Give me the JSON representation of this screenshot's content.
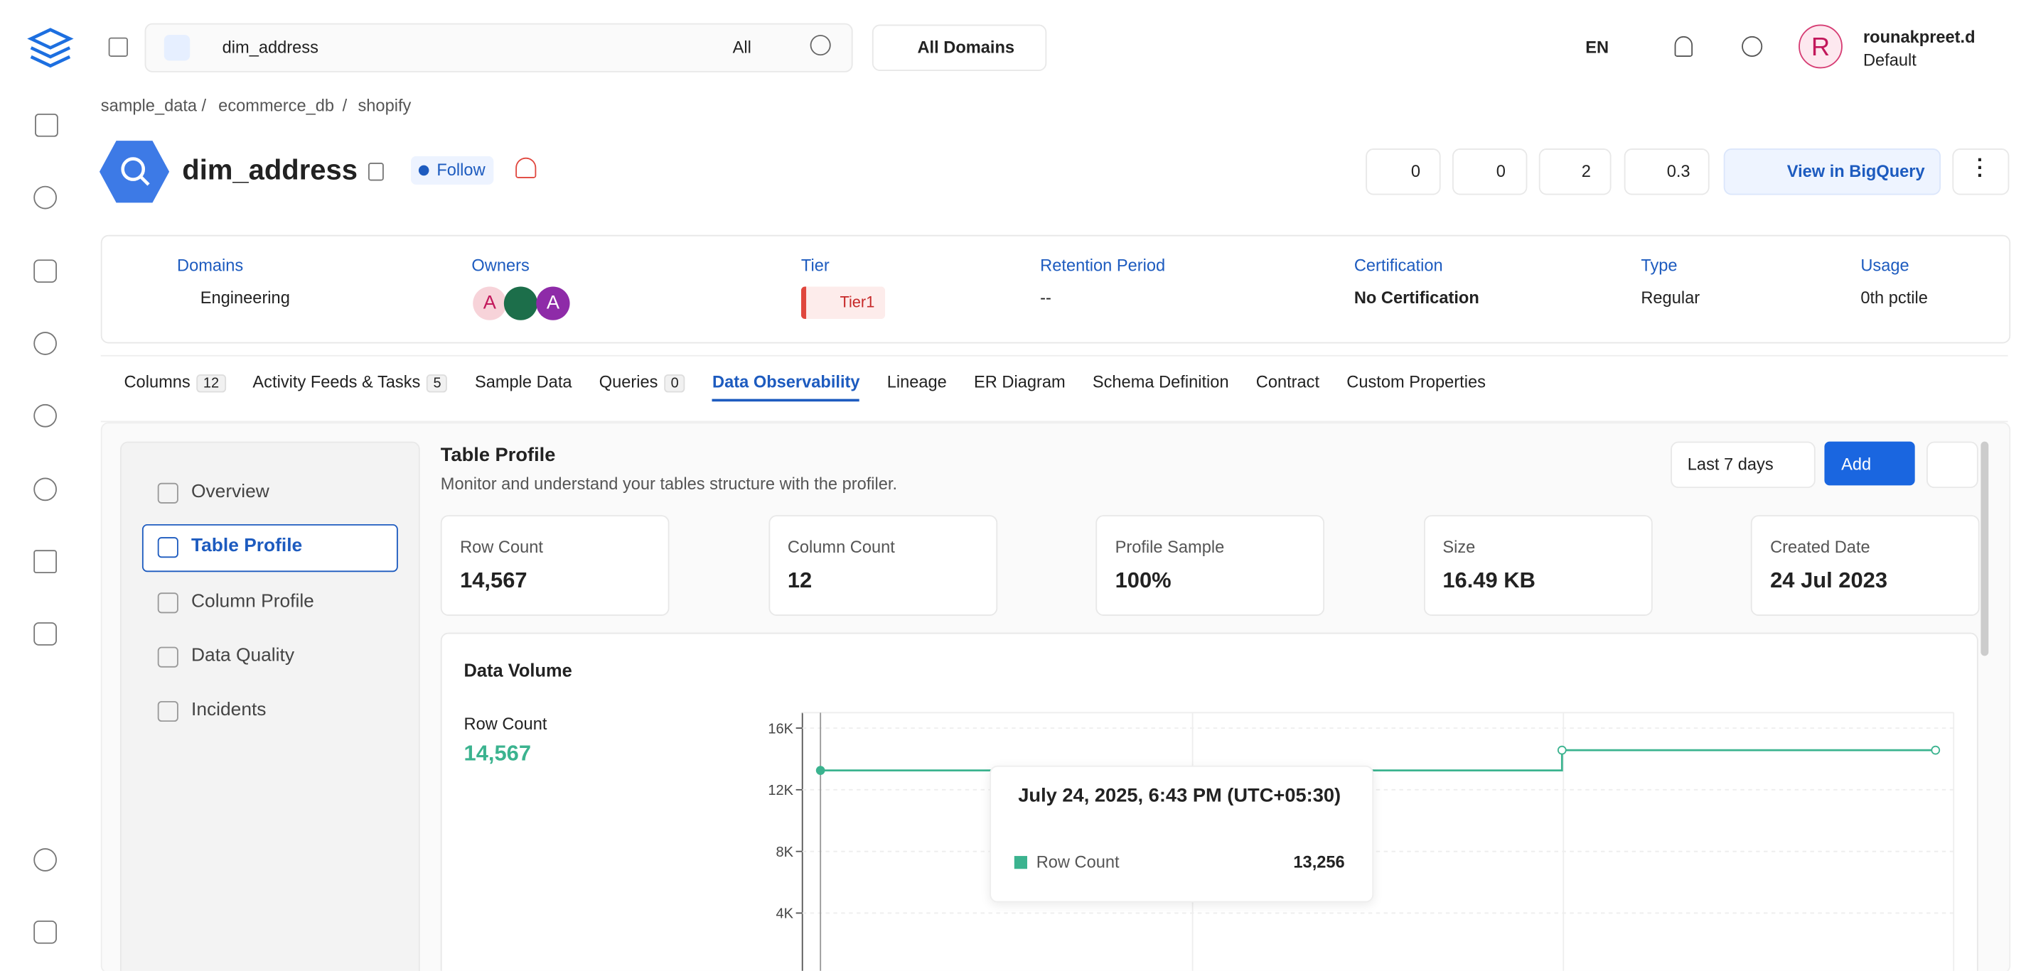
{
  "nav": {
    "search": "dim_address",
    "search_filter": "All",
    "domains": "All Domains",
    "language": "EN",
    "user": {
      "initial": "R",
      "name": "rounakpreet.d",
      "role": "Default"
    }
  },
  "breadcrumb": [
    "sample_data",
    "ecommerce_db",
    "shopify"
  ],
  "entity": {
    "name": "dim_address",
    "follow": "Follow",
    "up_votes": "0",
    "down_votes": "0",
    "tasks": "2",
    "version": "0.3",
    "view_button": "View in BigQuery"
  },
  "properties": {
    "domains": {
      "label": "Domains",
      "value": "Engineering"
    },
    "owners": {
      "label": "Owners",
      "avatars": [
        "A",
        "A"
      ]
    },
    "tier": {
      "label": "Tier",
      "value": "Tier1"
    },
    "retention": {
      "label": "Retention Period",
      "value": "--"
    },
    "certification": {
      "label": "Certification",
      "value": "No Certification"
    },
    "type": {
      "label": "Type",
      "value": "Regular"
    },
    "usage": {
      "label": "Usage",
      "value": "0th pctile"
    }
  },
  "tabs": [
    {
      "label": "Columns",
      "count": "12"
    },
    {
      "label": "Activity Feeds & Tasks",
      "count": "5"
    },
    {
      "label": "Sample Data"
    },
    {
      "label": "Queries",
      "count": "0"
    },
    {
      "label": "Data Observability"
    },
    {
      "label": "Lineage"
    },
    {
      "label": "ER Diagram"
    },
    {
      "label": "Schema Definition"
    },
    {
      "label": "Contract"
    },
    {
      "label": "Custom Properties"
    }
  ],
  "side_menu": [
    "Overview",
    "Table Profile",
    "Column Profile",
    "Data Quality",
    "Incidents"
  ],
  "profile": {
    "title": "Table Profile",
    "description": "Monitor and understand your tables structure with the profiler.",
    "range": "Last 7 days",
    "add": "Add",
    "stats": [
      {
        "label": "Row Count",
        "value": "14,567"
      },
      {
        "label": "Column Count",
        "value": "12"
      },
      {
        "label": "Profile Sample",
        "value": "100%"
      },
      {
        "label": "Size",
        "value": "16.49 KB"
      },
      {
        "label": "Created Date",
        "value": "24 Jul 2023"
      }
    ]
  },
  "chart_data": {
    "type": "line",
    "title": "Data Volume",
    "metric_label": "Row Count",
    "metric_value": "14,567",
    "ylim": [
      0,
      17000
    ],
    "yticks": [
      {
        "value": 4000,
        "label": "4K"
      },
      {
        "value": 8000,
        "label": "8K"
      },
      {
        "value": 12000,
        "label": "12K"
      },
      {
        "value": 16000,
        "label": "16K"
      }
    ],
    "grid": true,
    "series": [
      {
        "name": "Row Count",
        "color": "#3bb38f",
        "values": [
          13256,
          13256,
          14567,
          14567
        ],
        "value_labels": [
          "13,256",
          null,
          null,
          null
        ]
      }
    ],
    "tooltip": "July 24, 2025, 6:43 PM (UTC+05:30)"
  }
}
